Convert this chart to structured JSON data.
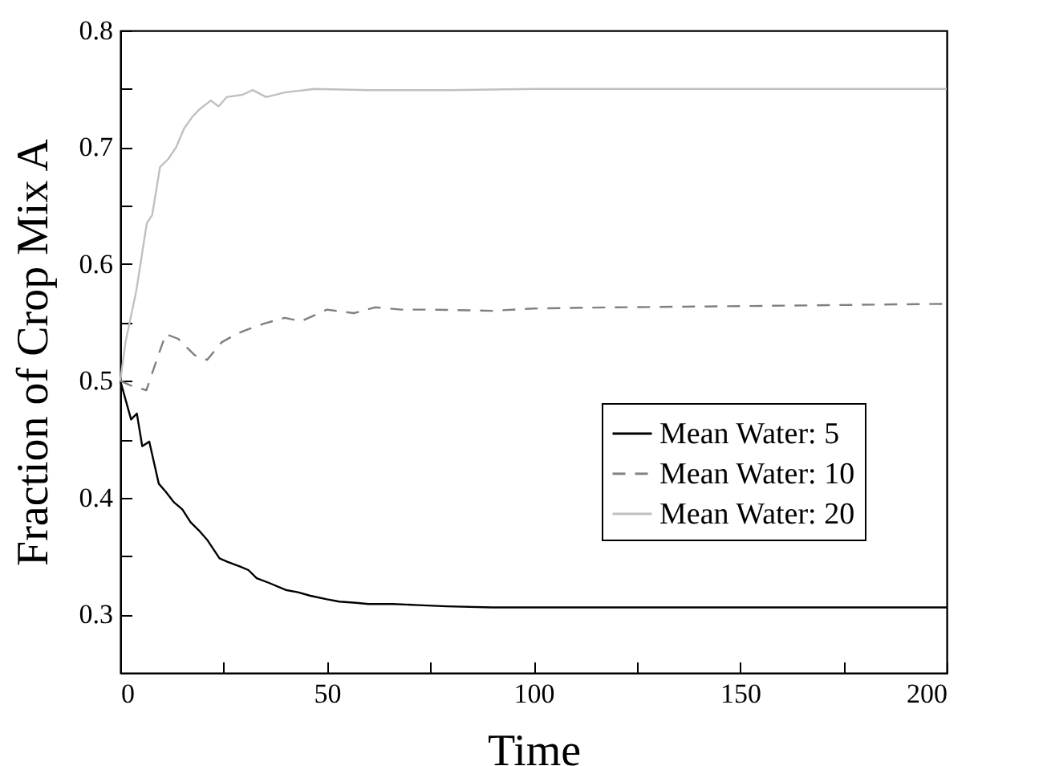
{
  "chart_data": {
    "type": "line",
    "xlabel": "Time",
    "ylabel": "Fraction of Crop Mix A",
    "xlim": [
      0,
      200
    ],
    "ylim": [
      0.25,
      0.8
    ],
    "xticks": [
      0,
      {
        "value": 25,
        "label": null
      },
      50,
      {
        "value": 75,
        "label": null
      },
      100,
      {
        "value": 125,
        "label": null
      },
      150,
      {
        "value": 175,
        "label": null
      },
      200
    ],
    "yticks": [
      {
        "value": 0.25,
        "label": null
      },
      0.3,
      {
        "value": 0.35,
        "label": null
      },
      0.4,
      {
        "value": 0.45,
        "label": null
      },
      0.5,
      {
        "value": 0.55,
        "label": null
      },
      0.6,
      {
        "value": 0.65,
        "label": null
      },
      0.7,
      {
        "value": 0.75,
        "label": null
      },
      0.8
    ],
    "grid": false,
    "legend": "right",
    "series": [
      {
        "name": "Mean Water: 5",
        "color": "#000000",
        "line_style": "solid",
        "x": [
          0,
          2.6,
          4,
          5.3,
          7,
          9.3,
          11,
          13,
          15,
          17,
          19,
          21,
          24,
          26,
          29,
          31,
          33,
          36,
          40,
          43,
          46,
          50,
          53,
          57,
          60,
          66,
          72,
          79,
          90,
          100,
          120,
          150,
          200
        ],
        "values": [
          0.5,
          0.467,
          0.472,
          0.444,
          0.448,
          0.412,
          0.405,
          0.396,
          0.39,
          0.379,
          0.372,
          0.364,
          0.348,
          0.345,
          0.341,
          0.338,
          0.331,
          0.327,
          0.321,
          0.319,
          0.316,
          0.313,
          0.311,
          0.31,
          0.309,
          0.309,
          0.308,
          0.307,
          0.306,
          0.306,
          0.306,
          0.306,
          0.306
        ]
      },
      {
        "name": "Mean Water: 10",
        "color": "#808080",
        "line_style": "dashed",
        "x": [
          0,
          2.5,
          6.3,
          9,
          11,
          14,
          18,
          21,
          24.5,
          28,
          30.8,
          34.7,
          39.8,
          43.7,
          50,
          56.5,
          61.7,
          68,
          75.7,
          90,
          100,
          120,
          150,
          200
        ],
        "values": [
          0.5,
          0.496,
          0.492,
          0.52,
          0.54,
          0.536,
          0.522,
          0.518,
          0.533,
          0.54,
          0.544,
          0.549,
          0.554,
          0.551,
          0.561,
          0.558,
          0.563,
          0.561,
          0.561,
          0.56,
          0.562,
          0.563,
          0.564,
          0.566
        ]
      },
      {
        "name": "Mean Water: 20",
        "color": "#c0c0c0",
        "line_style": "solid",
        "x": [
          0,
          1.3,
          3.9,
          6.4,
          7.7,
          9.6,
          11.6,
          13.5,
          15.4,
          17.4,
          19.3,
          21.9,
          23.8,
          25.7,
          29.6,
          32,
          35.3,
          39.8,
          47,
          60,
          80,
          100,
          150,
          200
        ],
        "values": [
          0.5,
          0.534,
          0.578,
          0.635,
          0.642,
          0.683,
          0.69,
          0.7,
          0.716,
          0.726,
          0.733,
          0.74,
          0.735,
          0.743,
          0.745,
          0.749,
          0.743,
          0.747,
          0.75,
          0.749,
          0.749,
          0.75,
          0.75,
          0.75
        ]
      }
    ]
  }
}
